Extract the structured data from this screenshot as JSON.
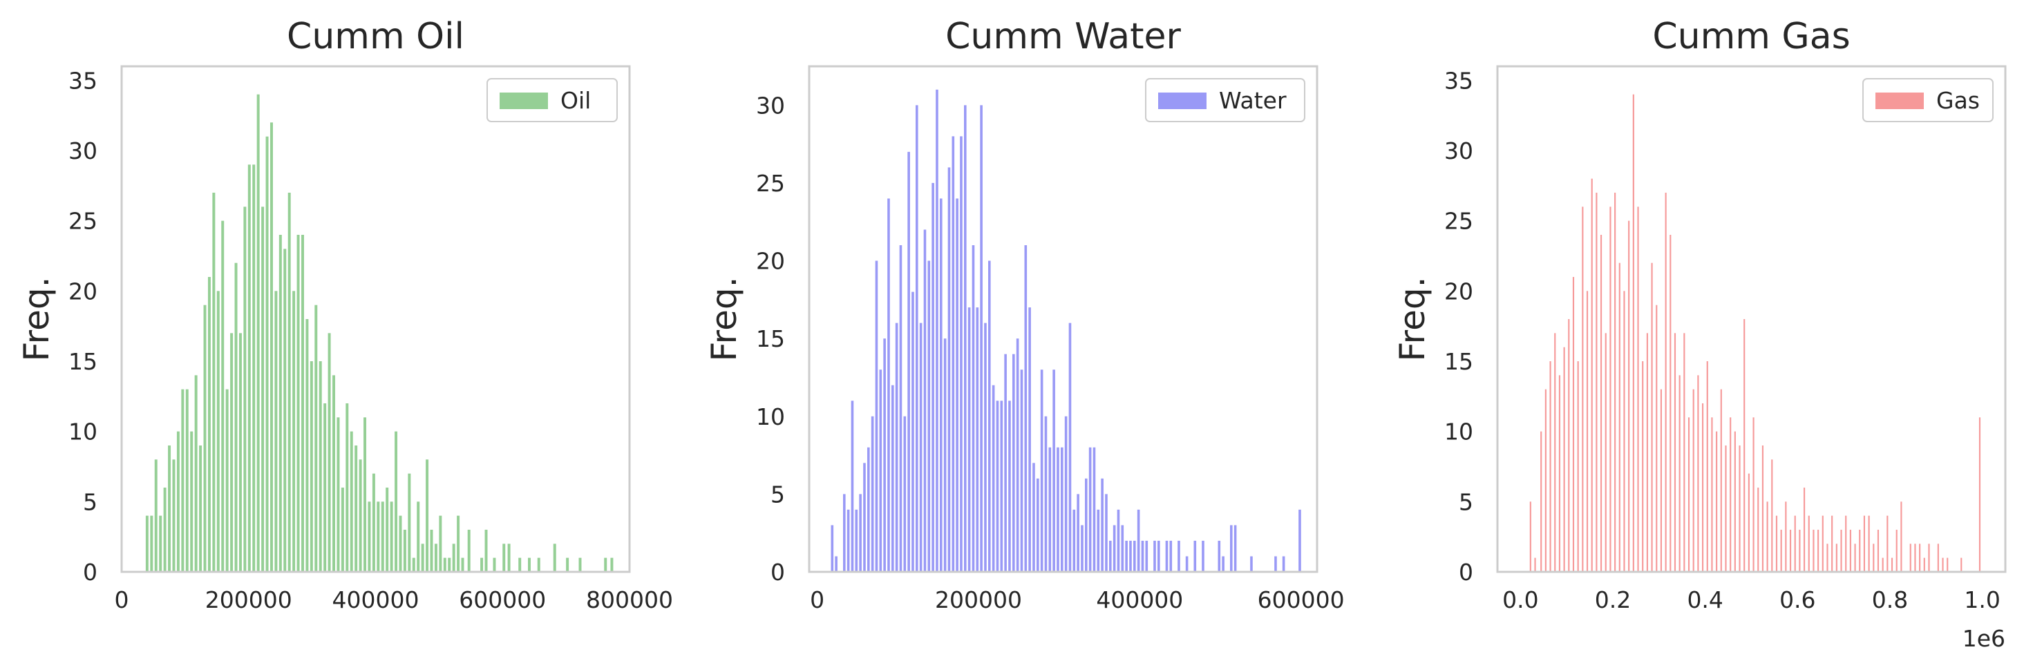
{
  "chart_data": [
    {
      "type": "bar",
      "title": "Cumm Oil",
      "xlabel": "",
      "ylabel": "Freq.",
      "color": "#2ca02c",
      "fill_opacity": 0.5,
      "legend": [
        "Oil"
      ],
      "legend_position": "top-right",
      "grid": false,
      "bin_width": 6500,
      "xlim": [
        0,
        800000
      ],
      "ylim": [
        0,
        36
      ],
      "xticks": [
        0,
        200000,
        400000,
        600000,
        800000
      ],
      "xtick_labels": [
        "0",
        "200000",
        "400000",
        "600000",
        "800000"
      ],
      "yticks": [
        0,
        5,
        10,
        15,
        20,
        25,
        30,
        35
      ],
      "ytick_labels": [
        "0",
        "5",
        "10",
        "15",
        "20",
        "25",
        "30",
        "35"
      ],
      "offset_text": "",
      "bins": [
        [
          38000,
          4
        ],
        [
          45000,
          4
        ],
        [
          52000,
          8
        ],
        [
          59000,
          4
        ],
        [
          66000,
          6
        ],
        [
          73000,
          9
        ],
        [
          80000,
          8
        ],
        [
          87000,
          10
        ],
        [
          94000,
          13
        ],
        [
          101000,
          13
        ],
        [
          108000,
          10
        ],
        [
          115000,
          14
        ],
        [
          122000,
          9
        ],
        [
          129000,
          19
        ],
        [
          136000,
          21
        ],
        [
          143000,
          27
        ],
        [
          150000,
          20
        ],
        [
          157000,
          25
        ],
        [
          164000,
          13
        ],
        [
          171000,
          17
        ],
        [
          178000,
          22
        ],
        [
          185000,
          17
        ],
        [
          192000,
          26
        ],
        [
          199000,
          29
        ],
        [
          206000,
          29
        ],
        [
          213000,
          34
        ],
        [
          220000,
          26
        ],
        [
          227000,
          31
        ],
        [
          234000,
          32
        ],
        [
          241000,
          20
        ],
        [
          248000,
          24
        ],
        [
          255000,
          23
        ],
        [
          262000,
          27
        ],
        [
          269000,
          20
        ],
        [
          276000,
          24
        ],
        [
          283000,
          24
        ],
        [
          290000,
          18
        ],
        [
          297000,
          15
        ],
        [
          304000,
          19
        ],
        [
          311000,
          15
        ],
        [
          318000,
          12
        ],
        [
          325000,
          17
        ],
        [
          332000,
          14
        ],
        [
          339000,
          11
        ],
        [
          346000,
          6
        ],
        [
          353000,
          12
        ],
        [
          360000,
          10
        ],
        [
          367000,
          9
        ],
        [
          374000,
          8
        ],
        [
          381000,
          11
        ],
        [
          388000,
          5
        ],
        [
          395000,
          7
        ],
        [
          402000,
          5
        ],
        [
          409000,
          5
        ],
        [
          416000,
          6
        ],
        [
          423000,
          5
        ],
        [
          430000,
          10
        ],
        [
          437000,
          4
        ],
        [
          444000,
          3
        ],
        [
          451000,
          7
        ],
        [
          458000,
          1
        ],
        [
          465000,
          5
        ],
        [
          472000,
          2
        ],
        [
          479000,
          8
        ],
        [
          486000,
          3
        ],
        [
          493000,
          2
        ],
        [
          500000,
          4
        ],
        [
          507000,
          1
        ],
        [
          514000,
          1
        ],
        [
          521000,
          2
        ],
        [
          528000,
          4
        ],
        [
          535000,
          1
        ],
        [
          545000,
          3
        ],
        [
          565000,
          1
        ],
        [
          572000,
          3
        ],
        [
          585000,
          1
        ],
        [
          600000,
          2
        ],
        [
          608000,
          2
        ],
        [
          625000,
          1
        ],
        [
          640000,
          1
        ],
        [
          655000,
          1
        ],
        [
          680000,
          2
        ],
        [
          700000,
          1
        ],
        [
          720000,
          1
        ],
        [
          760000,
          1
        ],
        [
          770000,
          1
        ]
      ]
    },
    {
      "type": "bar",
      "title": "Cumm Water",
      "xlabel": "",
      "ylabel": "Freq.",
      "color": "#3333ee",
      "fill_opacity": 0.5,
      "legend": [
        "Water"
      ],
      "legend_position": "top-right",
      "grid": false,
      "bin_width": 4800,
      "xlim": [
        -10000,
        620000
      ],
      "ylim": [
        0,
        32.5
      ],
      "xticks": [
        0,
        200000,
        400000,
        600000
      ],
      "xtick_labels": [
        "0",
        "200000",
        "400000",
        "600000"
      ],
      "yticks": [
        0,
        5,
        10,
        15,
        20,
        25,
        30
      ],
      "ytick_labels": [
        "0",
        "5",
        "10",
        "15",
        "20",
        "25",
        "30"
      ],
      "offset_text": "",
      "bins": [
        [
          17000,
          3
        ],
        [
          22000,
          1
        ],
        [
          32000,
          5
        ],
        [
          37000,
          4
        ],
        [
          42000,
          11
        ],
        [
          47000,
          4
        ],
        [
          52000,
          5
        ],
        [
          57000,
          7
        ],
        [
          62000,
          8
        ],
        [
          67000,
          10
        ],
        [
          72000,
          20
        ],
        [
          77000,
          13
        ],
        [
          82000,
          15
        ],
        [
          87000,
          24
        ],
        [
          92000,
          12
        ],
        [
          97000,
          16
        ],
        [
          102000,
          21
        ],
        [
          107000,
          10
        ],
        [
          112000,
          27
        ],
        [
          117000,
          18
        ],
        [
          122000,
          30
        ],
        [
          127000,
          16
        ],
        [
          132000,
          22
        ],
        [
          137000,
          20
        ],
        [
          142000,
          25
        ],
        [
          147000,
          31
        ],
        [
          152000,
          24
        ],
        [
          157000,
          15
        ],
        [
          162000,
          26
        ],
        [
          167000,
          28
        ],
        [
          172000,
          24
        ],
        [
          177000,
          28
        ],
        [
          182000,
          30
        ],
        [
          187000,
          17
        ],
        [
          192000,
          21
        ],
        [
          197000,
          17
        ],
        [
          202000,
          30
        ],
        [
          207000,
          16
        ],
        [
          212000,
          20
        ],
        [
          217000,
          12
        ],
        [
          222000,
          11
        ],
        [
          227000,
          11
        ],
        [
          232000,
          14
        ],
        [
          237000,
          11
        ],
        [
          242000,
          14
        ],
        [
          247000,
          15
        ],
        [
          252000,
          13
        ],
        [
          257000,
          21
        ],
        [
          262000,
          17
        ],
        [
          267000,
          7
        ],
        [
          272000,
          6
        ],
        [
          277000,
          13
        ],
        [
          282000,
          10
        ],
        [
          287000,
          8
        ],
        [
          292000,
          13
        ],
        [
          297000,
          8
        ],
        [
          302000,
          8
        ],
        [
          307000,
          10
        ],
        [
          312000,
          16
        ],
        [
          317000,
          4
        ],
        [
          322000,
          5
        ],
        [
          327000,
          3
        ],
        [
          332000,
          6
        ],
        [
          337000,
          8
        ],
        [
          342000,
          8
        ],
        [
          347000,
          4
        ],
        [
          352000,
          6
        ],
        [
          357000,
          5
        ],
        [
          362000,
          2
        ],
        [
          367000,
          3
        ],
        [
          372000,
          4
        ],
        [
          377000,
          3
        ],
        [
          382000,
          2
        ],
        [
          387000,
          2
        ],
        [
          392000,
          2
        ],
        [
          397000,
          4
        ],
        [
          402000,
          2
        ],
        [
          407000,
          2
        ],
        [
          417000,
          2
        ],
        [
          422000,
          2
        ],
        [
          432000,
          2
        ],
        [
          437000,
          2
        ],
        [
          447000,
          2
        ],
        [
          457000,
          1
        ],
        [
          467000,
          2
        ],
        [
          477000,
          2
        ],
        [
          497000,
          2
        ],
        [
          502000,
          1
        ],
        [
          512000,
          3
        ],
        [
          517000,
          3
        ],
        [
          537000,
          1
        ],
        [
          567000,
          1
        ],
        [
          577000,
          1
        ],
        [
          597000,
          4
        ]
      ]
    },
    {
      "type": "bar",
      "title": "Cumm Gas",
      "xlabel": "",
      "ylabel": "Freq.",
      "color": "#ee3333",
      "fill_opacity": 0.5,
      "legend": [
        "Gas"
      ],
      "legend_position": "top-right",
      "grid": false,
      "bin_width": 0.0062,
      "xlim": [
        -0.05,
        1.05
      ],
      "ylim": [
        0,
        36
      ],
      "xticks": [
        0.0,
        0.2,
        0.4,
        0.6,
        0.8,
        1.0
      ],
      "xtick_labels": [
        "0.0",
        "0.2",
        "0.4",
        "0.6",
        "0.8",
        "1.0"
      ],
      "yticks": [
        0,
        5,
        10,
        15,
        20,
        25,
        30,
        35
      ],
      "ytick_labels": [
        "0",
        "5",
        "10",
        "15",
        "20",
        "25",
        "30",
        "35"
      ],
      "offset_text": "1e6",
      "bins": [
        [
          0.02,
          5
        ],
        [
          0.03,
          1
        ],
        [
          0.043,
          10
        ],
        [
          0.053,
          13
        ],
        [
          0.063,
          15
        ],
        [
          0.073,
          17
        ],
        [
          0.083,
          14
        ],
        [
          0.093,
          16
        ],
        [
          0.103,
          18
        ],
        [
          0.113,
          21
        ],
        [
          0.123,
          15
        ],
        [
          0.133,
          26
        ],
        [
          0.143,
          20
        ],
        [
          0.153,
          28
        ],
        [
          0.163,
          27
        ],
        [
          0.173,
          24
        ],
        [
          0.183,
          17
        ],
        [
          0.193,
          26
        ],
        [
          0.203,
          27
        ],
        [
          0.213,
          22
        ],
        [
          0.223,
          20
        ],
        [
          0.233,
          25
        ],
        [
          0.243,
          34
        ],
        [
          0.253,
          26
        ],
        [
          0.263,
          15
        ],
        [
          0.273,
          17
        ],
        [
          0.283,
          22
        ],
        [
          0.293,
          19
        ],
        [
          0.303,
          13
        ],
        [
          0.313,
          27
        ],
        [
          0.323,
          24
        ],
        [
          0.333,
          17
        ],
        [
          0.343,
          14
        ],
        [
          0.353,
          17
        ],
        [
          0.363,
          11
        ],
        [
          0.373,
          13
        ],
        [
          0.383,
          14
        ],
        [
          0.393,
          12
        ],
        [
          0.403,
          15
        ],
        [
          0.413,
          11
        ],
        [
          0.423,
          10
        ],
        [
          0.433,
          13
        ],
        [
          0.443,
          9
        ],
        [
          0.453,
          11
        ],
        [
          0.463,
          10
        ],
        [
          0.473,
          9
        ],
        [
          0.483,
          18
        ],
        [
          0.493,
          7
        ],
        [
          0.503,
          11
        ],
        [
          0.513,
          6
        ],
        [
          0.523,
          9
        ],
        [
          0.533,
          5
        ],
        [
          0.543,
          8
        ],
        [
          0.553,
          4
        ],
        [
          0.563,
          3
        ],
        [
          0.573,
          5
        ],
        [
          0.583,
          3
        ],
        [
          0.593,
          4
        ],
        [
          0.603,
          3
        ],
        [
          0.613,
          6
        ],
        [
          0.623,
          4
        ],
        [
          0.633,
          3
        ],
        [
          0.643,
          3
        ],
        [
          0.653,
          4
        ],
        [
          0.663,
          2
        ],
        [
          0.673,
          4
        ],
        [
          0.683,
          2
        ],
        [
          0.693,
          3
        ],
        [
          0.703,
          4
        ],
        [
          0.713,
          3
        ],
        [
          0.723,
          2
        ],
        [
          0.733,
          3
        ],
        [
          0.743,
          4
        ],
        [
          0.753,
          4
        ],
        [
          0.763,
          2
        ],
        [
          0.773,
          3
        ],
        [
          0.783,
          1
        ],
        [
          0.793,
          4
        ],
        [
          0.803,
          1
        ],
        [
          0.813,
          3
        ],
        [
          0.823,
          5
        ],
        [
          0.843,
          2
        ],
        [
          0.853,
          2
        ],
        [
          0.863,
          2
        ],
        [
          0.873,
          1
        ],
        [
          0.883,
          2
        ],
        [
          0.903,
          2
        ],
        [
          0.913,
          1
        ],
        [
          0.923,
          1
        ],
        [
          0.953,
          1
        ],
        [
          0.993,
          11
        ]
      ]
    }
  ]
}
